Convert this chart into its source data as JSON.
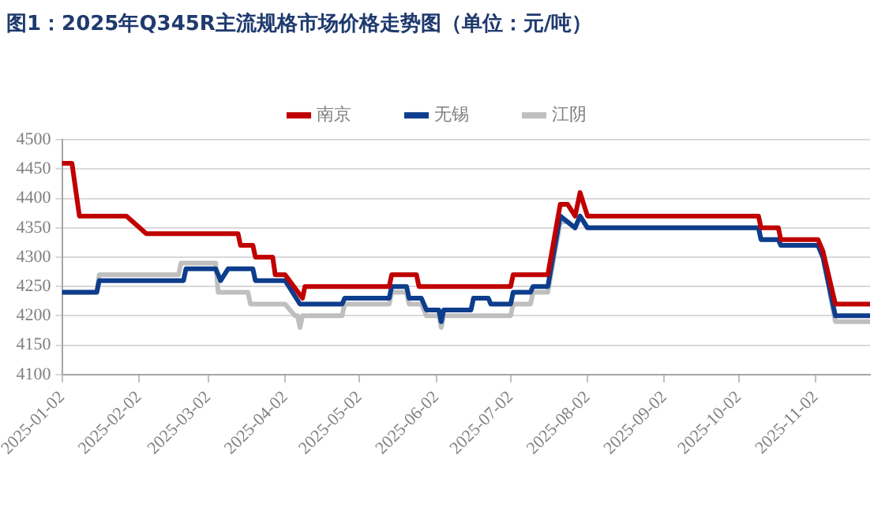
{
  "chart_data": {
    "type": "line",
    "title": "图1：2025年Q345R主流规格市场价格走势图（单位：元/吨）",
    "xlim": [
      "2025-01-02",
      "2025-11-24"
    ],
    "xticks": [
      "2025-01-02",
      "2025-02-02",
      "2025-03-02",
      "2025-04-02",
      "2025-05-02",
      "2025-06-02",
      "2025-07-02",
      "2025-08-02",
      "2025-09-02",
      "2025-10-02",
      "2025-11-02"
    ],
    "ylim": [
      4100,
      4500
    ],
    "yticks": [
      4100,
      4150,
      4200,
      4250,
      4300,
      4350,
      4400,
      4450,
      4500
    ],
    "grid": "y",
    "legend": "top",
    "marker": "none",
    "line_style": "solid",
    "series": [
      {
        "name": "南京",
        "color": "#c00000",
        "x": [
          "2025-01-02",
          "2025-01-06",
          "2025-01-09",
          "2025-01-28",
          "2025-02-05",
          "2025-03-14",
          "2025-03-15",
          "2025-03-20",
          "2025-03-21",
          "2025-03-28",
          "2025-03-29",
          "2025-04-02",
          "2025-04-09",
          "2025-04-10",
          "2025-05-14",
          "2025-05-15",
          "2025-05-25",
          "2025-05-26",
          "2025-07-02",
          "2025-07-03",
          "2025-07-17",
          "2025-07-22",
          "2025-07-25",
          "2025-07-28",
          "2025-07-30",
          "2025-08-02",
          "2025-10-10",
          "2025-10-11",
          "2025-10-18",
          "2025-10-19",
          "2025-11-03",
          "2025-11-05",
          "2025-11-10",
          "2025-11-24"
        ],
        "values": [
          4460,
          4460,
          4370,
          4370,
          4340,
          4340,
          4320,
          4320,
          4300,
          4300,
          4270,
          4270,
          4230,
          4250,
          4250,
          4270,
          4270,
          4250,
          4250,
          4270,
          4270,
          4390,
          4390,
          4370,
          4410,
          4370,
          4370,
          4350,
          4350,
          4330,
          4330,
          4310,
          4220,
          4220
        ]
      },
      {
        "name": "无锡",
        "color": "#0d3d8c",
        "x": [
          "2025-01-02",
          "2025-01-16",
          "2025-01-17",
          "2025-02-20",
          "2025-02-21",
          "2025-03-05",
          "2025-03-07",
          "2025-03-10",
          "2025-03-20",
          "2025-03-21",
          "2025-04-02",
          "2025-04-08",
          "2025-04-25",
          "2025-04-26",
          "2025-05-14",
          "2025-05-15",
          "2025-05-21",
          "2025-05-22",
          "2025-05-27",
          "2025-05-29",
          "2025-06-03",
          "2025-06-04",
          "2025-06-05",
          "2025-06-16",
          "2025-06-17",
          "2025-06-23",
          "2025-06-24",
          "2025-07-02",
          "2025-07-03",
          "2025-07-10",
          "2025-07-11",
          "2025-07-17",
          "2025-07-22",
          "2025-07-25",
          "2025-07-28",
          "2025-07-30",
          "2025-08-02",
          "2025-10-10",
          "2025-10-11",
          "2025-10-18",
          "2025-10-19",
          "2025-11-03",
          "2025-11-05",
          "2025-11-10",
          "2025-11-24"
        ],
        "values": [
          4240,
          4240,
          4260,
          4260,
          4280,
          4280,
          4260,
          4280,
          4280,
          4260,
          4260,
          4220,
          4220,
          4230,
          4230,
          4250,
          4250,
          4230,
          4230,
          4210,
          4210,
          4190,
          4210,
          4210,
          4230,
          4230,
          4220,
          4220,
          4240,
          4240,
          4250,
          4250,
          4370,
          4360,
          4350,
          4370,
          4350,
          4350,
          4330,
          4330,
          4320,
          4320,
          4300,
          4200,
          4200
        ]
      },
      {
        "name": "江阴",
        "color": "#bfbfbf",
        "x": [
          "2025-01-02",
          "2025-01-16",
          "2025-01-17",
          "2025-02-18",
          "2025-02-19",
          "2025-03-05",
          "2025-03-06",
          "2025-03-18",
          "2025-03-19",
          "2025-04-02",
          "2025-04-06",
          "2025-04-07",
          "2025-04-08",
          "2025-04-09",
          "2025-04-25",
          "2025-04-26",
          "2025-05-14",
          "2025-05-15",
          "2025-05-21",
          "2025-05-22",
          "2025-05-27",
          "2025-05-29",
          "2025-06-03",
          "2025-06-04",
          "2025-06-05",
          "2025-07-02",
          "2025-07-03",
          "2025-07-10",
          "2025-07-11",
          "2025-07-17",
          "2025-07-22",
          "2025-07-25",
          "2025-07-28",
          "2025-07-30",
          "2025-08-02",
          "2025-10-10",
          "2025-10-11",
          "2025-10-18",
          "2025-10-19",
          "2025-11-03",
          "2025-11-05",
          "2025-11-10",
          "2025-11-24"
        ],
        "values": [
          4240,
          4240,
          4270,
          4270,
          4290,
          4290,
          4240,
          4240,
          4220,
          4220,
          4200,
          4200,
          4180,
          4200,
          4200,
          4220,
          4220,
          4240,
          4240,
          4220,
          4220,
          4200,
          4200,
          4180,
          4200,
          4200,
          4220,
          4220,
          4240,
          4240,
          4360,
          4360,
          4350,
          4370,
          4350,
          4350,
          4330,
          4330,
          4320,
          4320,
          4300,
          4190,
          4190
        ]
      }
    ]
  }
}
